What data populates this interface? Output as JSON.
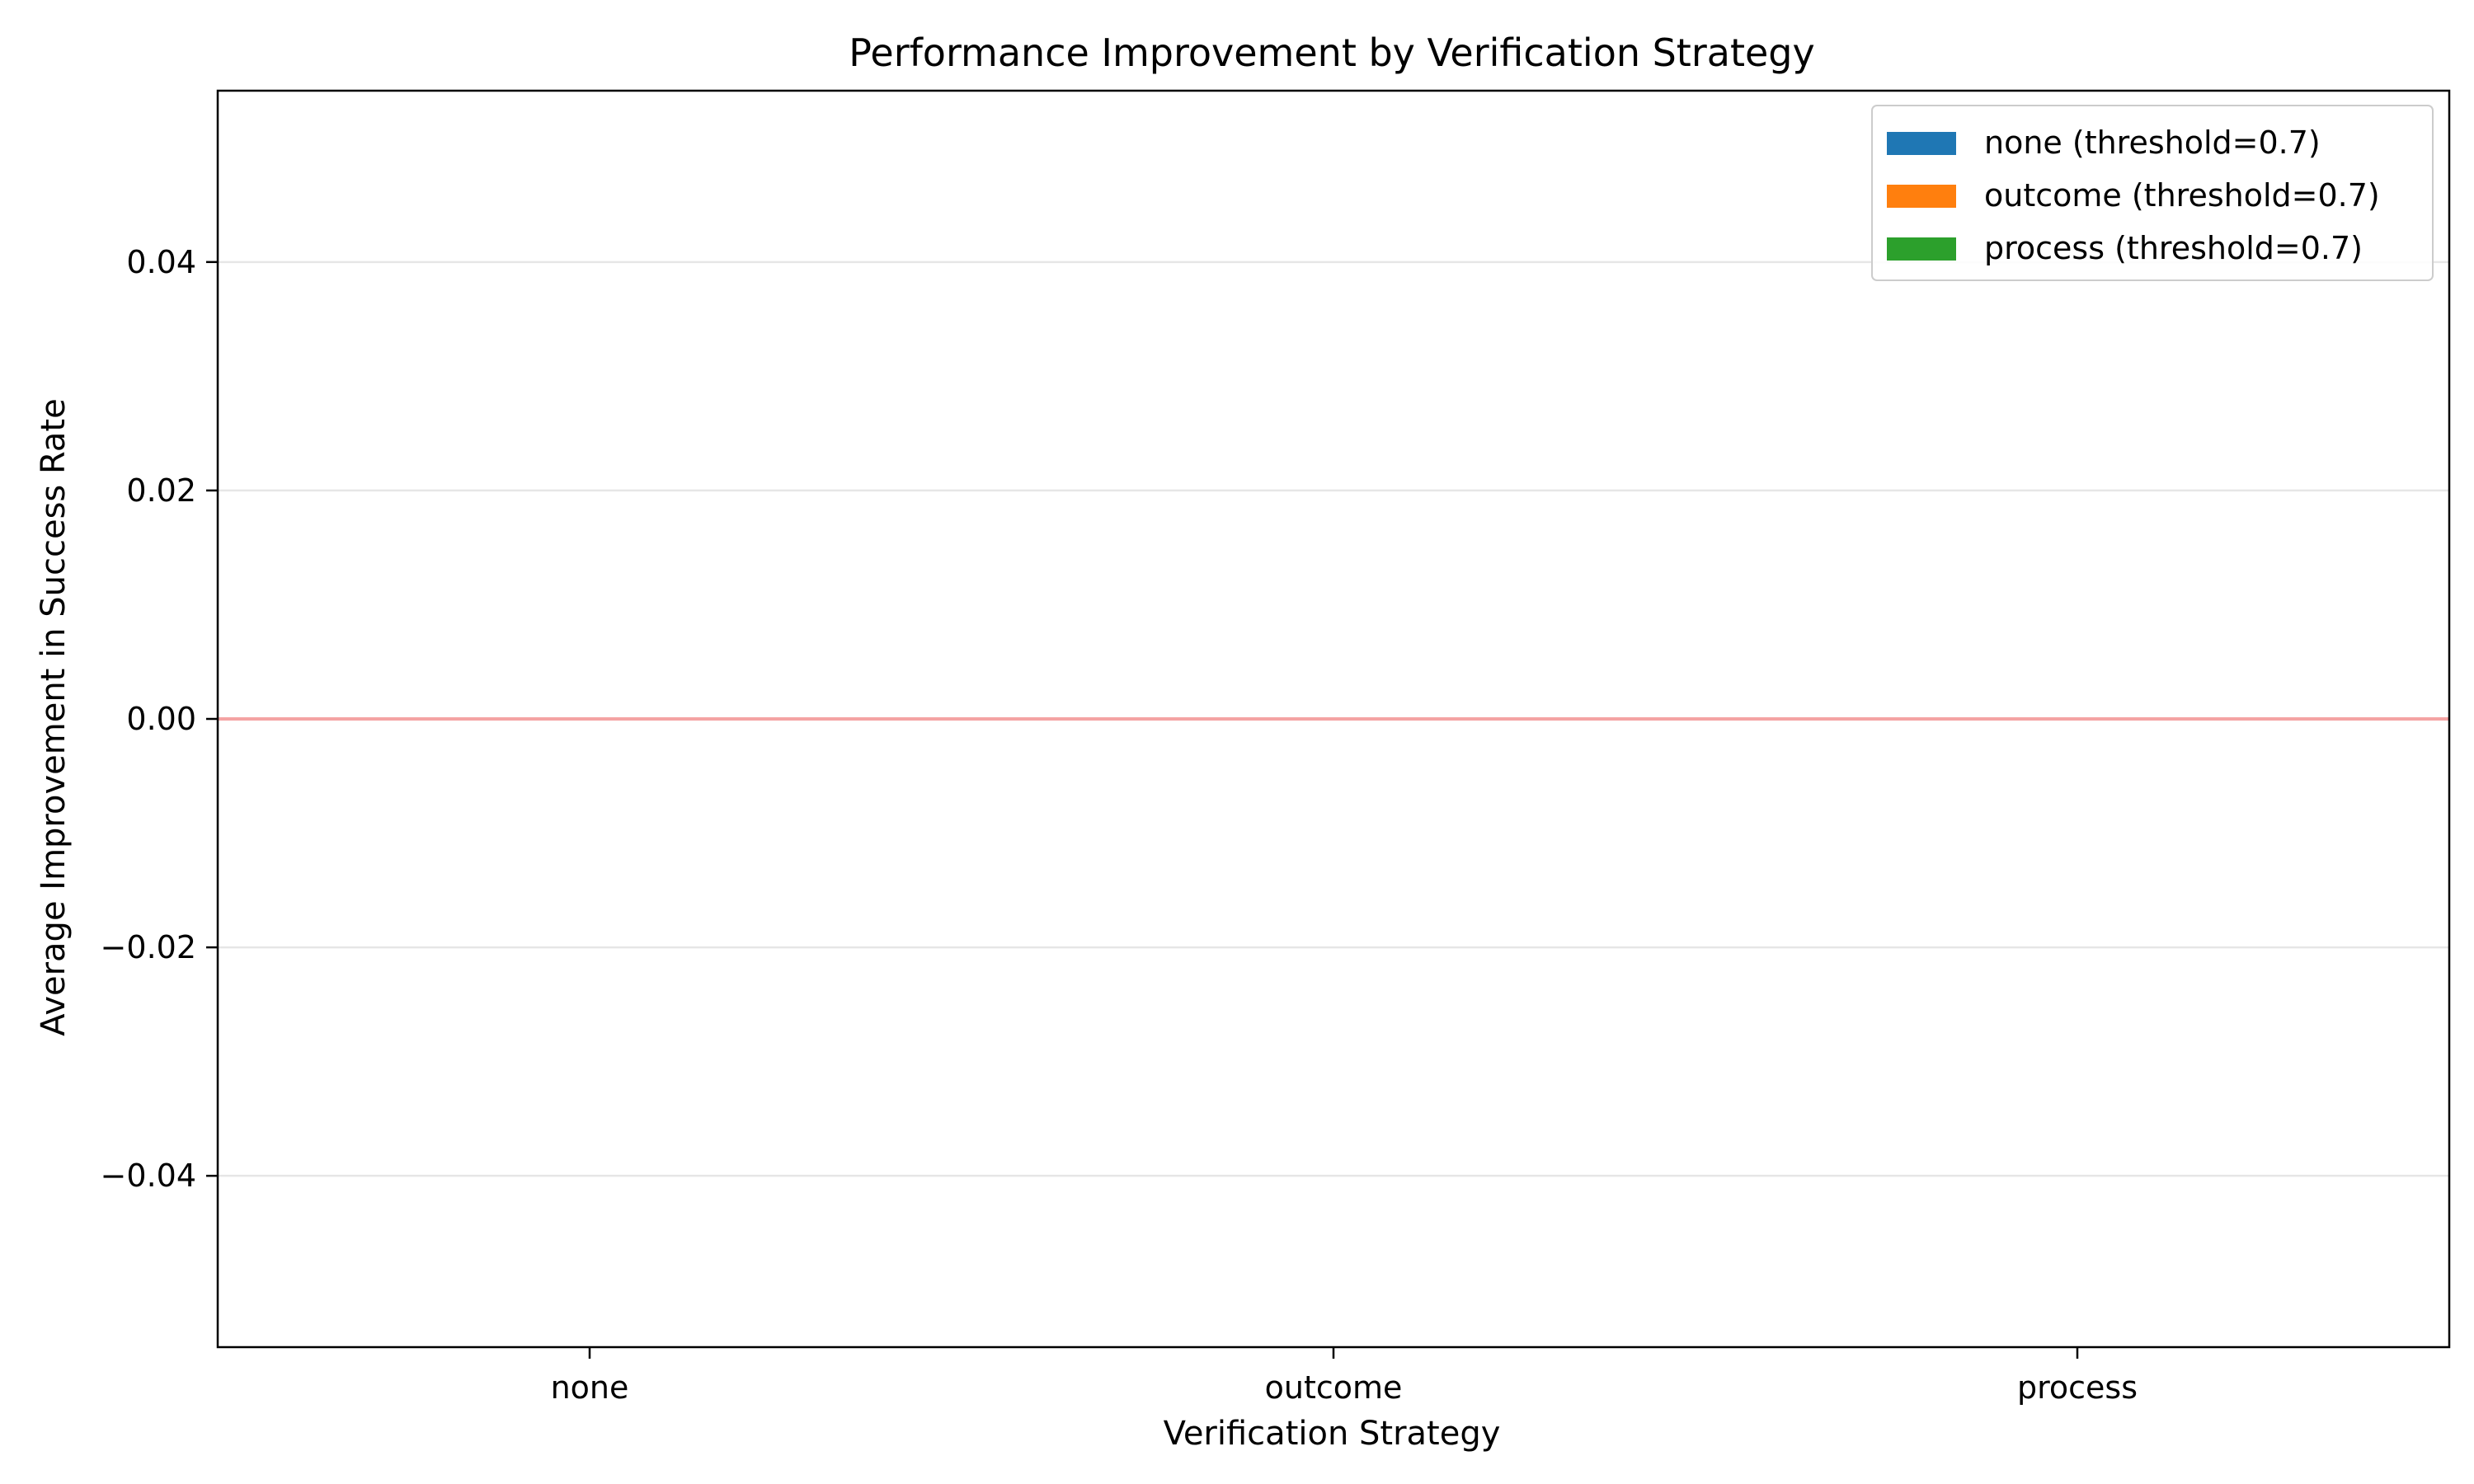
{
  "chart_data": {
    "type": "bar",
    "title": "Performance Improvement by Verification Strategy",
    "xlabel": "Verification Strategy",
    "ylabel": "Average Improvement in Success Rate",
    "categories": [
      "none",
      "outcome",
      "process"
    ],
    "ylim": [
      -0.055,
      0.055
    ],
    "yticks": [
      -0.04,
      -0.02,
      0.0,
      0.02,
      0.04
    ],
    "ytick_labels": [
      "−0.04",
      "−0.02",
      "0.00",
      "0.02",
      "0.04"
    ],
    "series": [
      {
        "name": "none (threshold=0.7)",
        "color": "#1f77b4",
        "values": [
          0.0,
          0.0,
          0.0
        ]
      },
      {
        "name": "outcome (threshold=0.7)",
        "color": "#ff7f0e",
        "values": [
          0.0,
          0.0,
          0.0
        ]
      },
      {
        "name": "process (threshold=0.7)",
        "color": "#2ca02c",
        "values": [
          0.0,
          0.0,
          0.0
        ]
      }
    ],
    "reference_line": {
      "y": 0,
      "color": "#f4a3a3"
    },
    "grid": "horizontal",
    "legend_position": "top-right"
  }
}
